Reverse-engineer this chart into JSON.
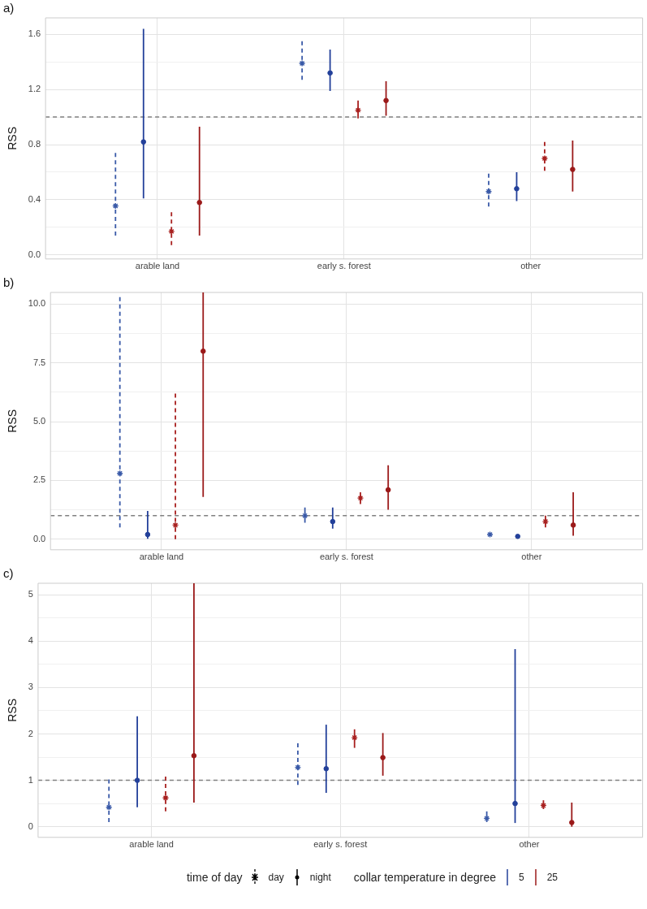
{
  "chart_data": [
    {
      "type": "scatter",
      "title": "a)",
      "ylabel": "RSS",
      "categories": [
        "arable land",
        "early s. forest",
        "other"
      ],
      "ylim": [
        -0.03,
        1.72
      ],
      "yticks": [
        {
          "value": 0,
          "label": "0.0"
        },
        {
          "value": 0.2,
          "label": null
        },
        {
          "value": 0.4,
          "label": "0.4"
        },
        {
          "value": 0.6,
          "label": null
        },
        {
          "value": 0.8,
          "label": "0.8"
        },
        {
          "value": 1.0,
          "label": null
        },
        {
          "value": 1.2,
          "label": "1.2"
        },
        {
          "value": 1.4,
          "label": null
        },
        {
          "value": 1.6,
          "label": "1.6"
        }
      ],
      "grid": true,
      "legend": false,
      "ref_lines": [
        {
          "axis": "y",
          "value": 1,
          "color": "#808080",
          "line_style": "dashed"
        }
      ],
      "series": [
        {
          "color": "#3a5aa8",
          "marker": "cross",
          "line_style": "dashed",
          "values": [
            0.355,
            1.39,
            0.46
          ],
          "errors": [
            [
              0.14,
              0.74
            ],
            [
              1.27,
              1.55
            ],
            [
              0.35,
              0.59
            ]
          ]
        },
        {
          "color": "#23409a",
          "marker": "circle",
          "line_style": "solid",
          "values": [
            0.82,
            1.32,
            0.48
          ],
          "errors": [
            [
              0.41,
              1.64
            ],
            [
              1.19,
              1.49
            ],
            [
              0.39,
              0.6
            ]
          ]
        },
        {
          "color": "#a8201f",
          "marker": "cross",
          "line_style": "dashed",
          "values": [
            0.17,
            1.05,
            0.7
          ],
          "errors": [
            [
              0.07,
              0.31
            ],
            [
              0.99,
              1.12
            ],
            [
              0.61,
              0.82
            ]
          ]
        },
        {
          "color": "#9b1a1a",
          "marker": "circle",
          "line_style": "solid",
          "values": [
            0.38,
            1.12,
            0.62
          ],
          "errors": [
            [
              0.14,
              0.93
            ],
            [
              1.01,
              1.26
            ],
            [
              0.46,
              0.83
            ]
          ]
        }
      ]
    },
    {
      "type": "scatter",
      "title": "b)",
      "ylabel": "RSS",
      "categories": [
        "arable land",
        "early s. forest",
        "other"
      ],
      "ylim": [
        -0.45,
        10.5
      ],
      "yticks": [
        {
          "value": 0,
          "label": "0.0"
        },
        {
          "value": 1.25,
          "label": null
        },
        {
          "value": 2.5,
          "label": "2.5"
        },
        {
          "value": 3.75,
          "label": null
        },
        {
          "value": 5,
          "label": "5.0"
        },
        {
          "value": 6.25,
          "label": null
        },
        {
          "value": 7.5,
          "label": "7.5"
        },
        {
          "value": 8.75,
          "label": null
        },
        {
          "value": 10,
          "label": "10.0"
        }
      ],
      "grid": true,
      "legend": false,
      "ref_lines": [
        {
          "axis": "y",
          "value": 1,
          "color": "#808080",
          "line_style": "dashed"
        }
      ],
      "series": [
        {
          "color": "#3a5aa8",
          "marker": "cross",
          "line_style": "dashed",
          "values": [
            2.8,
            1.0,
            0.2
          ],
          "errors": [
            [
              0.5,
              10.3
            ],
            [
              0.7,
              1.35
            ],
            null
          ]
        },
        {
          "color": "#23409a",
          "marker": "circle",
          "line_style": "solid",
          "values": [
            0.2,
            0.75,
            0.12
          ],
          "errors": [
            [
              0.02,
              1.2
            ],
            [
              0.45,
              1.35
            ],
            null
          ]
        },
        {
          "color": "#a8201f",
          "marker": "cross",
          "line_style": "dashed",
          "values": [
            0.6,
            1.75,
            0.75
          ],
          "errors": [
            [
              0,
              6.2
            ],
            [
              1.5,
              2.0
            ],
            [
              0.5,
              1.0
            ]
          ]
        },
        {
          "color": "#9b1a1a",
          "marker": "circle",
          "line_style": "solid",
          "values": [
            8.0,
            2.1,
            0.6
          ],
          "errors": [
            [
              1.8,
              10.5
            ],
            [
              1.25,
              3.15
            ],
            [
              0.15,
              2.0
            ]
          ]
        }
      ]
    },
    {
      "type": "scatter",
      "title": "c)",
      "ylabel": "RSS",
      "categories": [
        "arable land",
        "early s. forest",
        "other"
      ],
      "ylim": [
        -0.23,
        5.25
      ],
      "yticks": [
        0,
        {
          "value": 0.5,
          "label": null
        },
        1,
        {
          "value": 1.5,
          "label": null
        },
        2,
        {
          "value": 2.5,
          "label": null
        },
        3,
        {
          "value": 3.5,
          "label": null
        },
        4,
        {
          "value": 4.5,
          "label": null
        },
        5
      ],
      "grid": true,
      "legend": false,
      "ref_lines": [
        {
          "axis": "y",
          "value": 1,
          "color": "#808080",
          "line_style": "dashed"
        }
      ],
      "series": [
        {
          "color": "#3a5aa8",
          "marker": "cross",
          "line_style": "dashed",
          "values": [
            0.42,
            1.28,
            0.18
          ],
          "errors": [
            [
              0.1,
              1.02
            ],
            [
              0.9,
              1.8
            ],
            [
              0.1,
              0.33
            ]
          ]
        },
        {
          "color": "#23409a",
          "marker": "circle",
          "line_style": "solid",
          "values": [
            1.0,
            1.25,
            0.5
          ],
          "errors": [
            [
              0.42,
              2.38
            ],
            [
              0.73,
              2.2
            ],
            [
              0.08,
              3.83
            ]
          ]
        },
        {
          "color": "#a8201f",
          "marker": "cross",
          "line_style": "dashed",
          "values": [
            0.62,
            1.92,
            0.46
          ],
          "errors": [
            [
              0.33,
              1.08
            ],
            [
              1.7,
              2.1
            ],
            [
              0.38,
              0.57
            ]
          ]
        },
        {
          "color": "#9b1a1a",
          "marker": "circle",
          "line_style": "solid",
          "values": [
            1.53,
            1.49,
            0.09
          ],
          "errors": [
            [
              0.52,
              5.25
            ],
            [
              1.1,
              2.02
            ],
            [
              0,
              0.52
            ]
          ]
        }
      ]
    },
    {
      "type": "other",
      "annotations": [
        "time of day",
        "day",
        "night",
        "collar temperature in degree",
        "5",
        "25"
      ]
    }
  ]
}
